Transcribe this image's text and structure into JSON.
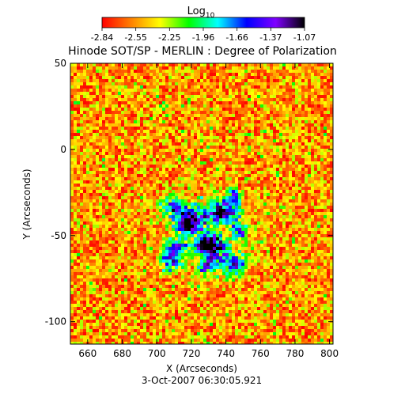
{
  "chart_data": {
    "type": "heatmap",
    "title": "Hinode SOT/SP - MERLIN : Degree of Polarization",
    "subtitle": "3-Oct-2007 06:30:05.921",
    "xlabel": "X (Arcseconds)",
    "ylabel": "Y (Arcseconds)",
    "xlim": [
      650,
      802
    ],
    "ylim": [
      -113,
      50
    ],
    "xticks": [
      660,
      680,
      700,
      720,
      740,
      760,
      780,
      800
    ],
    "yticks": [
      50,
      0,
      -50,
      -100
    ],
    "colorbar": {
      "label_base": "Log",
      "label_sub": "10",
      "range": [
        -2.84,
        -1.07
      ],
      "ticks": [
        "-2.84",
        "-2.55",
        "-2.25",
        "-1.96",
        "-1.66",
        "-1.37",
        "-1.07"
      ],
      "colormap": [
        "#ff0000",
        "#ff8000",
        "#ffff00",
        "#00ff00",
        "#00ffff",
        "#0000ff",
        "#8000ff",
        "#000000"
      ]
    },
    "z_description_values": {
      "background_level": -2.84,
      "active_region_center": [
        730,
        -48
      ],
      "peak_level": -1.07
    }
  }
}
